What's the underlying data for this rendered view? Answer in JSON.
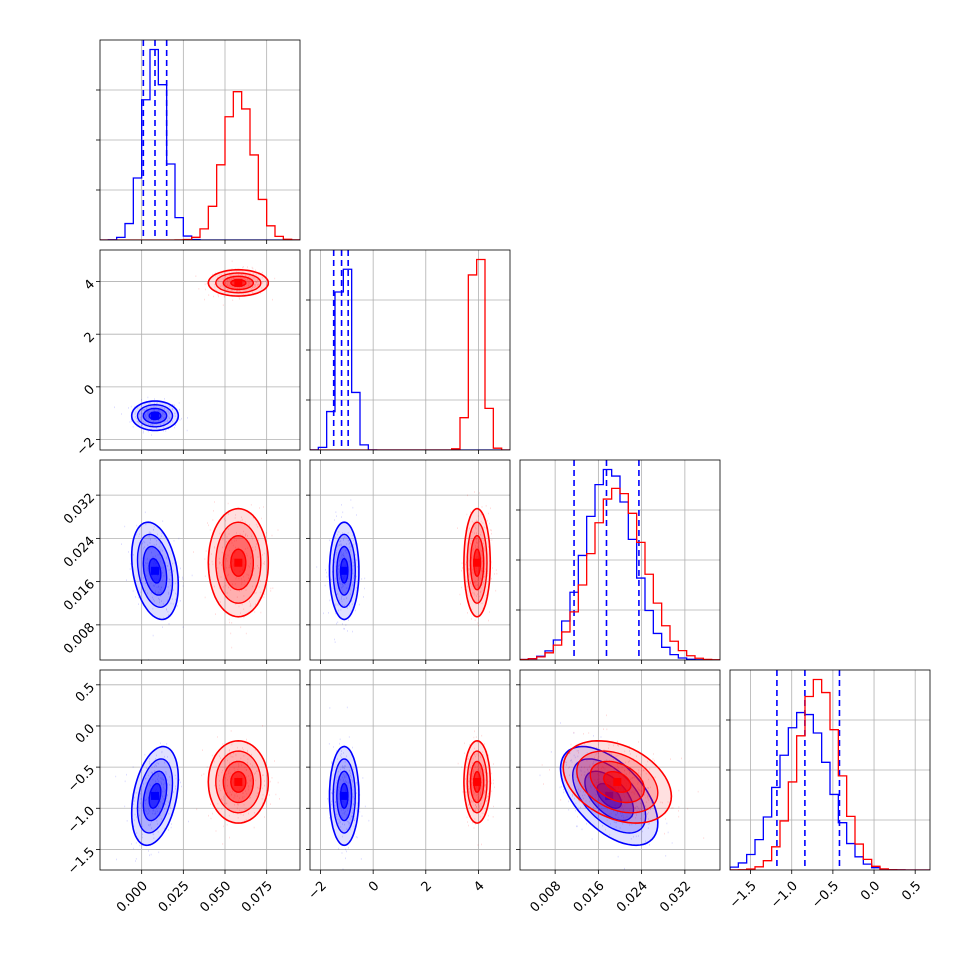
{
  "chart_data": {
    "type": "corner",
    "grid": true,
    "legend": "none",
    "colors": {
      "blue": "#0000ff",
      "red": "#ff0000"
    },
    "parameters": [
      {
        "range": [
          -0.025,
          0.095
        ],
        "ticks": [
          0.0,
          0.025,
          0.05,
          0.075
        ],
        "tick_labels": [
          "0.000",
          "0.025",
          "0.050",
          "0.075"
        ]
      },
      {
        "range": [
          -2.4,
          5.2
        ],
        "ticks": [
          -2,
          0,
          2,
          4
        ],
        "tick_labels": [
          "−2",
          "0",
          "2",
          "4"
        ]
      },
      {
        "range": [
          0.0015,
          0.0385
        ],
        "ticks": [
          0.008,
          0.016,
          0.024,
          0.032
        ],
        "tick_labels": [
          "0.008",
          "0.016",
          "0.024",
          "0.032"
        ]
      },
      {
        "range": [
          -1.75,
          0.68
        ],
        "ticks": [
          -1.5,
          -1.0,
          -0.5,
          0.0,
          0.5
        ],
        "tick_labels": [
          "−1.5",
          "−1.0",
          "−0.5",
          "0.0",
          "0.5"
        ]
      }
    ],
    "series": [
      {
        "color": "#0000ff",
        "means": [
          0.008,
          -1.1,
          0.018,
          -0.85
        ],
        "sds": [
          0.007,
          0.28,
          0.0045,
          0.3
        ],
        "correlations": {
          "0-2": -0.3,
          "0-3": 0.35,
          "1-2": 0.0,
          "1-3": 0.0,
          "2-3": -0.55,
          "0-1": 0.0
        },
        "quantiles": [
          [
            0.001,
            0.008,
            0.015
          ],
          [
            -1.5,
            -1.2,
            -0.95
          ],
          [
            0.0115,
            0.0175,
            0.0235
          ],
          [
            -1.18,
            -0.84,
            -0.42
          ]
        ]
      },
      {
        "color": "#ff0000",
        "means": [
          0.058,
          3.95,
          0.0195,
          -0.68
        ],
        "sds": [
          0.009,
          0.25,
          0.005,
          0.25
        ],
        "correlations": {
          "0-2": 0.0,
          "0-3": 0.0,
          "1-2": 0.0,
          "1-3": 0.0,
          "2-3": -0.35,
          "0-1": 0.0
        }
      }
    ]
  }
}
